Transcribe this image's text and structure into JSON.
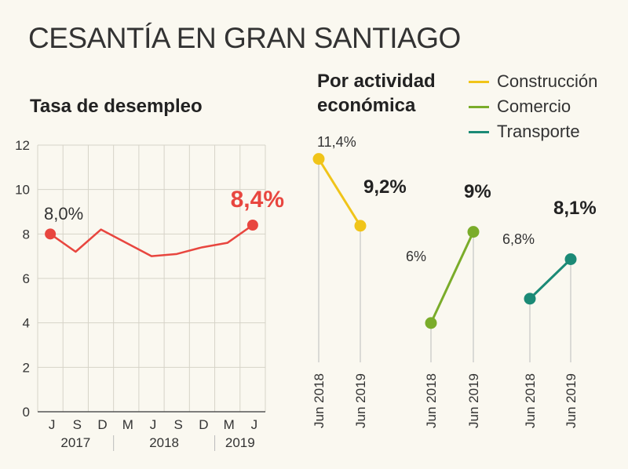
{
  "title": "CESANTÍA EN GRAN SANTIAGO",
  "chart_data": [
    {
      "type": "line",
      "title": "Tasa de desempleo",
      "ylim": [
        0,
        12
      ],
      "yticks": [
        "0",
        "2",
        "4",
        "6",
        "8",
        "10",
        "12"
      ],
      "xticks": [
        "J",
        "S",
        "D",
        "M",
        "J",
        "S",
        "D",
        "M",
        "J"
      ],
      "year_labels": [
        "2017",
        "2018",
        "2019"
      ],
      "grid": true,
      "color": "#e8463f",
      "values": [
        8.0,
        7.2,
        8.2,
        7.6,
        7.0,
        7.1,
        7.4,
        7.6,
        8.4
      ],
      "start_label": "8,0%",
      "end_label": "8,4%"
    },
    {
      "type": "line",
      "title": "Por actividad económica",
      "legend_position": "top-right",
      "categories": [
        "Jun 2018",
        "Jun 2019"
      ],
      "series": [
        {
          "name": "Construcción",
          "color": "#f0c419",
          "values": [
            11.4,
            9.2
          ],
          "labels": [
            "11,4%",
            "9,2%"
          ]
        },
        {
          "name": "Comercio",
          "color": "#7aac2a",
          "values": [
            6.0,
            9.0
          ],
          "labels": [
            "6%",
            "9%"
          ]
        },
        {
          "name": "Transporte",
          "color": "#1b8a76",
          "values": [
            6.8,
            8.1
          ],
          "labels": [
            "6,8%",
            "8,1%"
          ]
        }
      ]
    }
  ]
}
